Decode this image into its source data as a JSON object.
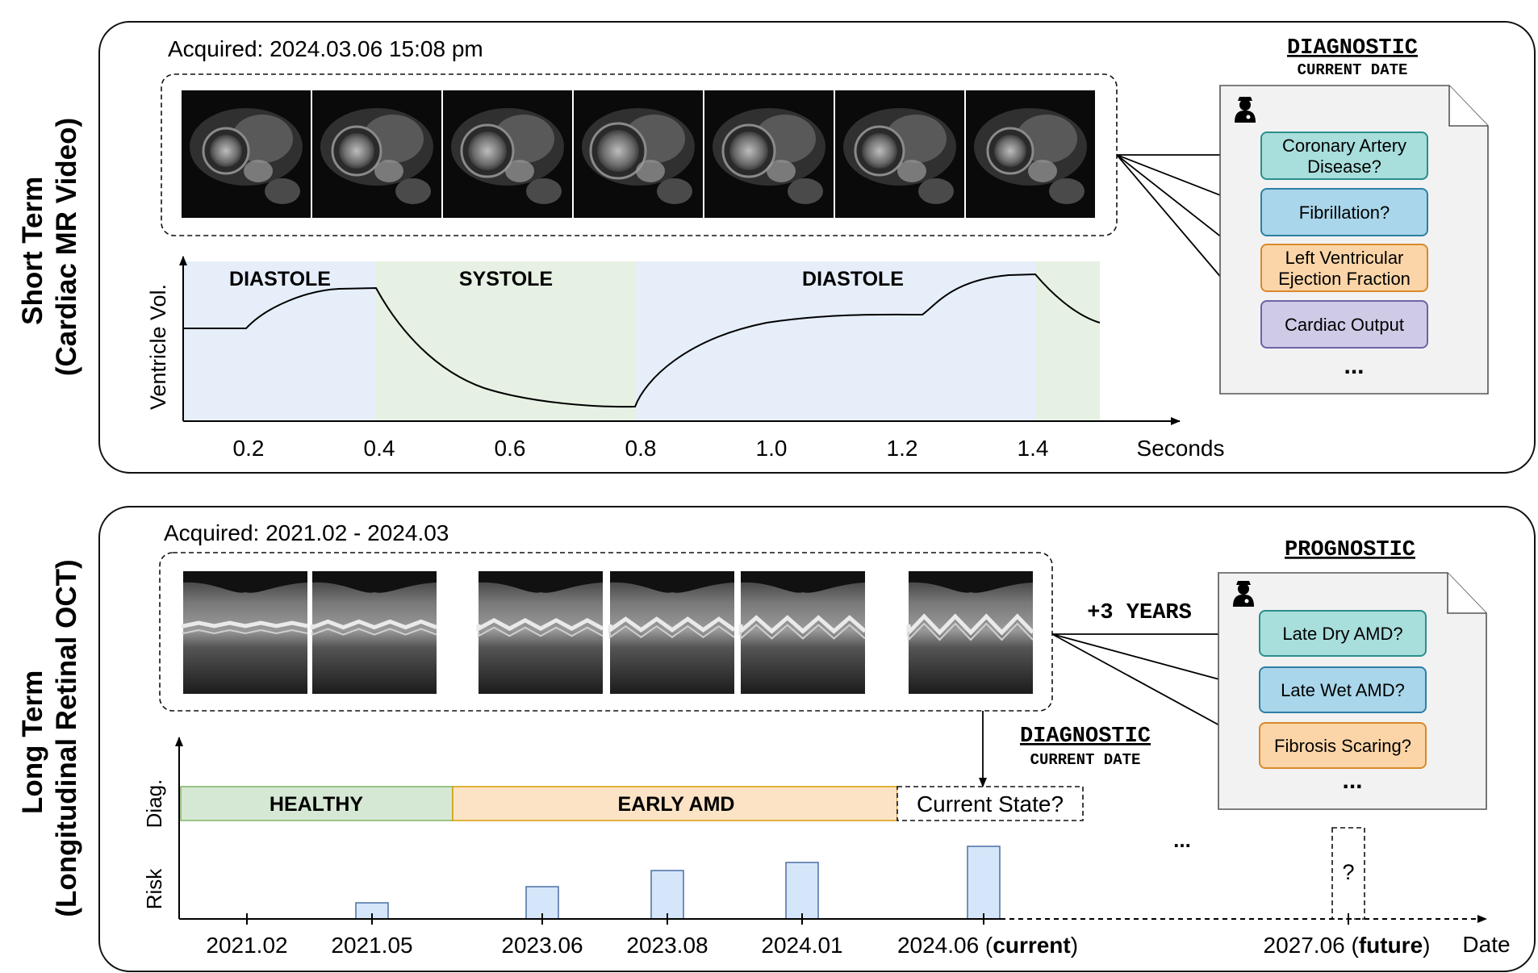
{
  "short_term": {
    "side_label_line1": "Short Term",
    "side_label_line2": "(Cardiac MR Video)",
    "acquired": "Acquired: 2024.03.06 15:08 pm",
    "frame_count": 7,
    "phase_diastole": "DIASTOLE",
    "phase_systole": "SYSTOLE",
    "phase_diastole2": "DIASTOLE",
    "y_label": "Ventricle Vol.",
    "x_label": "Seconds",
    "x_ticks": [
      "0.2",
      "0.4",
      "0.6",
      "0.8",
      "1.0",
      "1.2",
      "1.4"
    ],
    "diag_title": "DIAGNOSTIC",
    "diag_subtitle": "CURRENT DATE",
    "targets": [
      {
        "line1": "Coronary Artery",
        "line2": "Disease?",
        "color": "#a8dedb",
        "stroke": "#2a8f8a"
      },
      {
        "line1": "Fibrillation?",
        "line2": "",
        "color": "#a9d6ea",
        "stroke": "#2d7fa6"
      },
      {
        "line1": "Left Ventricular",
        "line2": "Ejection Fraction",
        "color": "#fbd5a8",
        "stroke": "#d9892b"
      },
      {
        "line1": "Cardiac Output",
        "line2": "",
        "color": "#cfcbe6",
        "stroke": "#6d63a8"
      }
    ],
    "ellipsis": "..."
  },
  "long_term": {
    "side_label_line1": "Long Term",
    "side_label_line2": "(Longitudinal Retinal OCT)",
    "acquired": "Acquired: 2021.02 - 2024.03",
    "horizon": "+3 YEARS",
    "prog_title": "PROGNOSTIC",
    "targets": [
      {
        "line1": "Late Dry AMD?",
        "color": "#a8dedb",
        "stroke": "#2a8f8a"
      },
      {
        "line1": "Late Wet AMD?",
        "color": "#a9d6ea",
        "stroke": "#2d7fa6"
      },
      {
        "line1": "Fibrosis Scaring?",
        "color": "#fbd5a8",
        "stroke": "#d9892b"
      }
    ],
    "ellipsis": "...",
    "diag_title": "DIAGNOSTIC",
    "diag_subtitle": "CURRENT DATE",
    "y_label_diag": "Diag.",
    "y_label_risk": "Risk",
    "state_healthy": "HEALTHY",
    "state_early": "EARLY AMD",
    "state_current": "Current State?",
    "timeline_dots": "...",
    "future_mark": "?",
    "x_label": "Date",
    "dates": [
      "2021.02",
      "2021.05",
      "2023.06",
      "2023.08",
      "2024.01",
      "2024.06",
      "2027.06"
    ],
    "current_word": "current",
    "future_word": "future",
    "risk_values": [
      0,
      1,
      2,
      3,
      3.5,
      4.5
    ]
  },
  "colors": {
    "diastole_bg": "#e6eefa",
    "systole_bg": "#e6f1e3",
    "healthy": "#d5e8d4",
    "early_amd": "#fde3c6",
    "risk_bar": "#d6e6fa"
  }
}
